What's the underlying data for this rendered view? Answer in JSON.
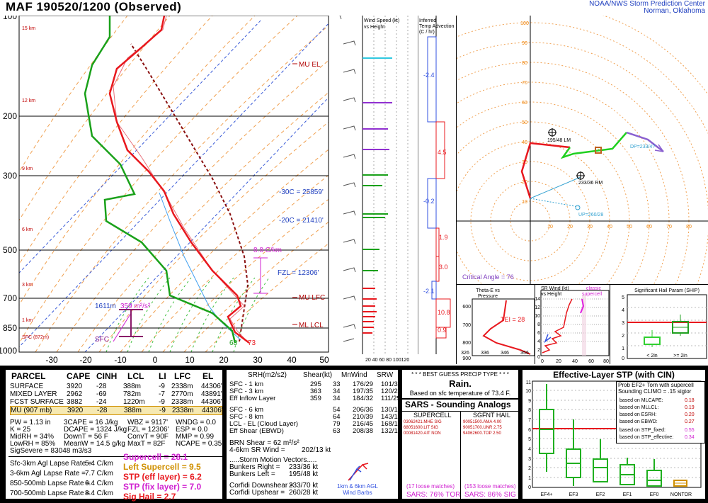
{
  "header": {
    "title": "MAF   190520/1200  (Observed)",
    "org_line1": "NOAA/NWS Storm Prediction Center",
    "org_line2": "Norman, Oklahoma"
  },
  "skewt": {
    "pressure_labels": [
      "100",
      "200",
      "300",
      "500",
      "700",
      "850",
      "1000"
    ],
    "temp_labels": [
      "-30",
      "-20",
      "-10",
      "0",
      "10",
      "20",
      "30",
      "40",
      "50"
    ],
    "height_labels": [
      "15 km",
      "12 km",
      "9 km",
      "6 km",
      "3 km",
      "1 km",
      "SFC (872m)"
    ],
    "annotations": {
      "mu_el": "MU EL",
      "m30c": "-30C = 25859'",
      "m20c": "-20C = 21410'",
      "lapse": "8.8 C/km",
      "fzl": "FZL = 12306'",
      "mu_lfc": "MU LFC",
      "ml_lcl": "ML LCL",
      "srh_depth": "1611m",
      "srh_val": "359 m²/s²",
      "sfc": "SFC",
      "sfc_td": "68",
      "sfc_t": "73"
    }
  },
  "wind_profile": {
    "title_line1": "Wind Speed (kt)",
    "title_line2": "vs Height",
    "x_ticks": "20 40 60 80 100120"
  },
  "temp_adv": {
    "title_line1": "Inferred",
    "title_line2": "Temp Advection",
    "title_line3": "(C / hr)",
    "values": [
      "-2.4",
      "4.5",
      "-0.2",
      "1.9",
      "3.0",
      "-2.1",
      "10.8",
      "0.9"
    ]
  },
  "hodograph": {
    "rings": [
      "10",
      "20",
      "30",
      "40",
      "50",
      "60",
      "70",
      "80",
      "90",
      "100",
      "110"
    ],
    "axis_labels": [
      "10",
      "20",
      "30",
      "40",
      "50",
      "60",
      "70",
      "80"
    ],
    "lm": "195/48 LM",
    "rm": "233/36 RM",
    "dp": "DP=233/4?",
    "up": "UP=260/28",
    "critical_angle": "Critical Angle = 76"
  },
  "theta_e": {
    "title_line1": "Theta-E vs",
    "title_line2": "Pressure",
    "p_labels": [
      "600",
      "700",
      "800",
      "900"
    ],
    "x_labels": [
      "326",
      "336",
      "346",
      "356"
    ],
    "tei": "TEI = 28"
  },
  "sr_wind": {
    "title_line1": "SR Wind (kt)",
    "title_line2": "vs Height",
    "legend1": "classic",
    "legend2": "supercell",
    "y_labels": [
      "14",
      "12",
      "10",
      "8",
      "6",
      "4",
      "2",
      "0"
    ],
    "x_labels": [
      "0",
      "20",
      "40",
      "60",
      "80"
    ]
  },
  "ship": {
    "title": "Significant Hail Param (SHIP)",
    "y_labels": [
      "5",
      "4",
      "3",
      "2",
      "1",
      "0"
    ],
    "x_label1": "< 2in",
    "x_label2": ">= 2in"
  },
  "parcel_table": {
    "headers": [
      "PARCEL",
      "CAPE",
      "CINH",
      "LCL",
      "LI",
      "LFC",
      "EL"
    ],
    "rows": [
      [
        "SURFACE",
        "3920",
        "-28",
        "388m",
        "-9",
        "2338m",
        "44306'"
      ],
      [
        "MIXED LAYER",
        "2962",
        "-69",
        "782m",
        "-7",
        "2770m",
        "43891'"
      ],
      [
        "FCST SURFACE",
        "3882",
        "-24",
        "1220m",
        "-9",
        "2338m",
        "44306'"
      ],
      [
        "MU   (907 mb)",
        "3920",
        "-28",
        "388m",
        "-9",
        "2338m",
        "44306'"
      ]
    ]
  },
  "thermo": {
    "col1": [
      "PW = 1.13 in",
      "K = 25",
      "MidRH = 34%",
      "LowRH = 85%",
      "SigSevere = 83048 m3/s3"
    ],
    "col2": [
      "3CAPE = 16 J/kg",
      "DCAPE = 1324 J/kg",
      "DownT = 56 F",
      "MeanW = 14.5 g/kg"
    ],
    "col3": [
      "WBZ = 9117'",
      "FZL = 12306'",
      "ConvT = 90F",
      "MaxT = 82F"
    ],
    "col4": [
      "WNDG = 0.0",
      "ESP = 0.0",
      "MMP = 0.99",
      "NCAPE = 0.35"
    ]
  },
  "lapse_rates": {
    "labels": [
      "Sfc-3km Agl Lapse Rate =",
      "3-6km Agl Lapse Rate =",
      "850-500mb Lapse Rate =",
      "700-500mb Lapse Rate ="
    ],
    "values": [
      "5.4 C/km",
      "7.7 C/km",
      "6.4 C/km",
      "8.4 C/km"
    ]
  },
  "composites": {
    "supercell": "Supercell = 28.1",
    "left_supercell": "Left Supercell = 9.5",
    "stp_eff": "STP (eff layer) = 6.2",
    "stp_fix": "STP (fix layer) = 7.0",
    "sig_hail": "Sig Hail = 2.7"
  },
  "kinematics": {
    "headers": [
      "SRH(m2/s2)",
      "Shear(kt)",
      "MnWind",
      "SRW"
    ],
    "rows": [
      [
        "SFC - 1 km",
        "295",
        "33",
        "176/29",
        "101/31"
      ],
      [
        "SFC - 3 km",
        "363",
        "34",
        "197/35",
        "120/22"
      ],
      [
        "Eff Inflow Layer",
        "359",
        "34",
        "184/32",
        "111/29"
      ],
      [
        "SFC - 6 km",
        "",
        "54",
        "206/36",
        "130/17"
      ],
      [
        "SFC - 8 km",
        "",
        "64",
        "210/39",
        "143/15"
      ],
      [
        "LCL - EL (Cloud Layer)",
        "",
        "79",
        "216/45",
        "168/15"
      ],
      [
        "Eff Shear (EBWD)",
        "",
        "63",
        "208/38",
        "132/16"
      ]
    ],
    "brn": "BRN Shear =  62 m²/s²",
    "sr_wind": "4-6km SR Wind =",
    "sr_wind_val": "202/13 kt",
    "storm_hdr": ".....Storm Motion Vectors.....",
    "bunkers_r": "Bunkers Right =",
    "bunkers_r_val": "233/36 kt",
    "bunkers_l": "Bunkers Left =",
    "bunkers_l_val": "195/48 kt",
    "corfidi_dn": "Corfidi Downshear =",
    "corfidi_dn_val": "233/70 kt",
    "corfidi_up": "Corfidi Upshear =",
    "corfidi_up_val": "260/28 kt",
    "barbs_lbl1": "1km & 6km AGL",
    "barbs_lbl2": "Wind Barbs"
  },
  "precip": {
    "title": "* * * BEST GUESS PRECIP TYPE * * *",
    "type": "Rain.",
    "basis": "Based on sfc temperature of 73.4 F."
  },
  "sars": {
    "title": "SARS - Sounding Analogs",
    "supercell_hdr": "SUPERCELL",
    "hail_hdr": "SGFNT HAIL",
    "supercell": [
      "03062421.MHE  SIG",
      "68051600.LIT  SIG",
      "00081420.AIT  NON"
    ],
    "hail": [
      "90051500.AMA  4.00",
      "90051700.UNR  2.75",
      "94062600.TOP  2.50"
    ],
    "matches_l": "(17 loose matches)",
    "matches_r": "(153 loose matches)",
    "tor": "SARS:  76% TOR",
    "sig": "SARS:  86% SIG"
  },
  "stp": {
    "title": "Effective-Layer STP (with CIN)",
    "prob1": "Prob EF2+ Torn with supercell",
    "prob2": "Sounding CLIMO = .15 sigtor",
    "based": [
      [
        "based on MLCAPE:",
        "0.18"
      ],
      [
        "based on MLLCL:",
        "0.19"
      ],
      [
        "based on ESRH:",
        "0.20"
      ],
      [
        "based on EBWD:",
        "0.27"
      ],
      [
        "based on STP_fixed:",
        "0.55"
      ],
      [
        "based on STP_effective:",
        "0.34"
      ]
    ],
    "y_labels": [
      "11",
      "10",
      "9",
      "8",
      "7",
      "6",
      "5",
      "4",
      "3",
      "2",
      "1",
      "0"
    ],
    "x_labels": [
      "EF4+",
      "EF3",
      "EF2",
      "EF1",
      "EF0",
      "NONTOR"
    ]
  },
  "colors": {
    "temp": "#e8181e",
    "dewpt": "#1aa11a",
    "virtual": "#9a1a2a",
    "parcel": "#8a1010",
    "isotherm": "#3a5bd8",
    "dryadiabat": "#f0a050",
    "mixing": "#41c041",
    "magenta": "#d020d0",
    "cyan": "#30c8e0"
  }
}
